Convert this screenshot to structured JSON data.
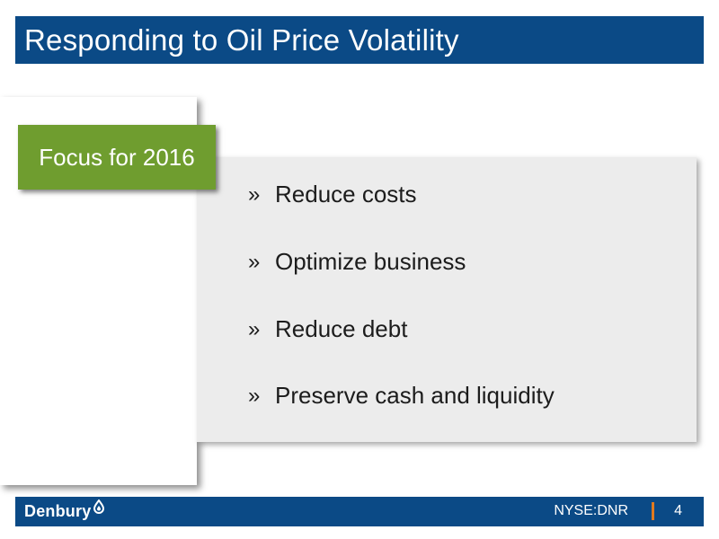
{
  "slide": {
    "title": "Responding to Oil Price Volatility",
    "focus_label": "Focus for 2016",
    "bullet_symbol": "»",
    "bullets": [
      "Reduce costs",
      "Optimize business",
      "Reduce debt",
      "Preserve cash and liquidity"
    ]
  },
  "footer": {
    "logo_text": "Denbury",
    "logo_icon": "water-drop-icon",
    "ticker": "NYSE:DNR",
    "page_number": "4"
  },
  "colors": {
    "title_bar": "#0b4a86",
    "focus_green": "#6f9d2f",
    "content_bg": "#ececec",
    "divider_orange": "#e07a1f"
  }
}
